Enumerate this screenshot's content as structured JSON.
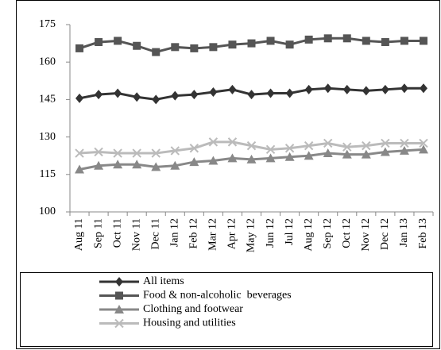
{
  "chart_data": {
    "type": "line",
    "categories": [
      "Aug 11",
      "Sep 11",
      "Oct 11",
      "Nov 11",
      "Dec 11",
      "Jan 12",
      "Feb 12",
      "Mar 12",
      "Apr 12",
      "May 12",
      "Jun 12",
      "Jul 12",
      "Aug 12",
      "Sep 12",
      "Oct 12",
      "Nov 12",
      "Dec 12",
      "Jan 13",
      "Feb 13"
    ],
    "series": [
      {
        "name": "All items",
        "color": "#333333",
        "marker": "diamond",
        "values": [
          145.5,
          147,
          147.5,
          146,
          145,
          146.5,
          147,
          148,
          149,
          147,
          147.5,
          147.5,
          149,
          149.5,
          149,
          148.5,
          149,
          149.5,
          149.5
        ]
      },
      {
        "name": "Food & non-alcoholic  beverages",
        "color": "#555555",
        "marker": "square",
        "values": [
          165.5,
          168,
          168.5,
          166.5,
          164,
          166,
          165.5,
          166,
          167,
          167.5,
          168.5,
          167,
          169,
          169.5,
          169.5,
          168.5,
          168,
          168.5,
          168.5
        ]
      },
      {
        "name": "Clothing and footwear",
        "color": "#888888",
        "marker": "triangle",
        "values": [
          117,
          118.5,
          119,
          119,
          118,
          118.5,
          120,
          120.5,
          121.5,
          121,
          121.5,
          122,
          122.5,
          123.5,
          123,
          123,
          124,
          124.5,
          125
        ]
      },
      {
        "name": "Housing and utilities",
        "color": "#bbbbbb",
        "marker": "x",
        "values": [
          123.5,
          124,
          123.5,
          123.5,
          123.5,
          124.5,
          125.5,
          128,
          128,
          126.5,
          125,
          125.5,
          126.5,
          127.5,
          126,
          126.5,
          127.5,
          127.5,
          127.5
        ]
      }
    ],
    "ylim": [
      100,
      175
    ],
    "yticks": [
      100,
      115,
      130,
      145,
      160,
      175
    ],
    "grid": false,
    "legend": "bottom"
  }
}
